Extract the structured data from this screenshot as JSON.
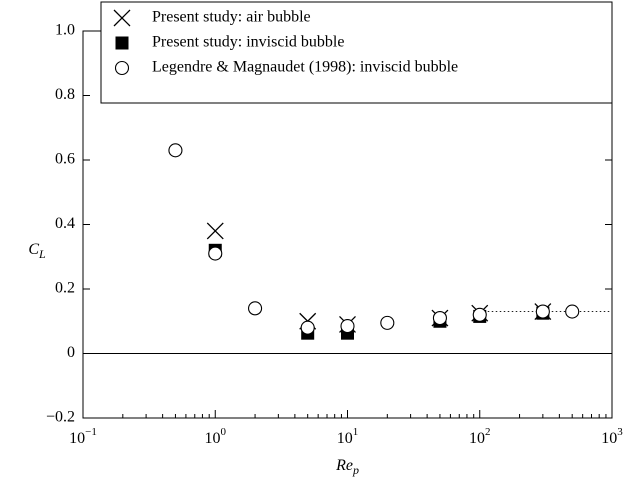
{
  "chart_data": {
    "type": "scatter",
    "xlabel": "Re",
    "xlabel_sub": "p",
    "ylabel": "C",
    "ylabel_sub": "L",
    "xscale": "log",
    "xlim": [
      0.1,
      1000
    ],
    "xticks": [
      {
        "value": 0.1,
        "label": "10",
        "exponent": "−1"
      },
      {
        "value": 1,
        "label": "10",
        "exponent": "0"
      },
      {
        "value": 10,
        "label": "10",
        "exponent": "1"
      },
      {
        "value": 100,
        "label": "10",
        "exponent": "2"
      },
      {
        "value": 1000,
        "label": "10",
        "exponent": "3"
      }
    ],
    "ylim": [
      -0.2,
      1.0
    ],
    "yticks": [
      {
        "value": -0.2,
        "label": "−0.2"
      },
      0,
      {
        "value": 0.2,
        "label": "0.2"
      },
      {
        "value": 0.4,
        "label": "0.4"
      },
      {
        "value": 0.6,
        "label": "0.6"
      },
      {
        "value": 0.8,
        "label": "0.8"
      },
      {
        "value": 1.0,
        "label": "1.0"
      }
    ],
    "legend": "upper right",
    "reference_lines": [
      {
        "y": 0.13,
        "x": [
          100,
          1000
        ],
        "style": "dotted"
      }
    ],
    "series": [
      {
        "name": "Present study: air bubble",
        "marker": "x",
        "color": "#000000",
        "x": [
          1,
          5,
          10,
          50,
          100,
          300
        ],
        "values": [
          0.38,
          0.1,
          0.09,
          0.11,
          0.125,
          0.13
        ]
      },
      {
        "name": "Present study: inviscid bubble",
        "marker": "square",
        "color": "#000000",
        "x": [
          1,
          5,
          10,
          50,
          100,
          300
        ],
        "values": [
          0.32,
          0.063,
          0.063,
          0.1,
          0.115,
          0.125
        ]
      },
      {
        "name": "Legendre & Magnaudet (1998): inviscid bubble",
        "marker": "circle",
        "color": "#000000",
        "x": [
          0.5,
          1,
          2,
          5,
          10,
          20,
          50,
          100,
          300,
          500
        ],
        "values": [
          0.63,
          0.31,
          0.14,
          0.08,
          0.085,
          0.095,
          0.11,
          0.12,
          0.13,
          0.13
        ]
      }
    ]
  }
}
